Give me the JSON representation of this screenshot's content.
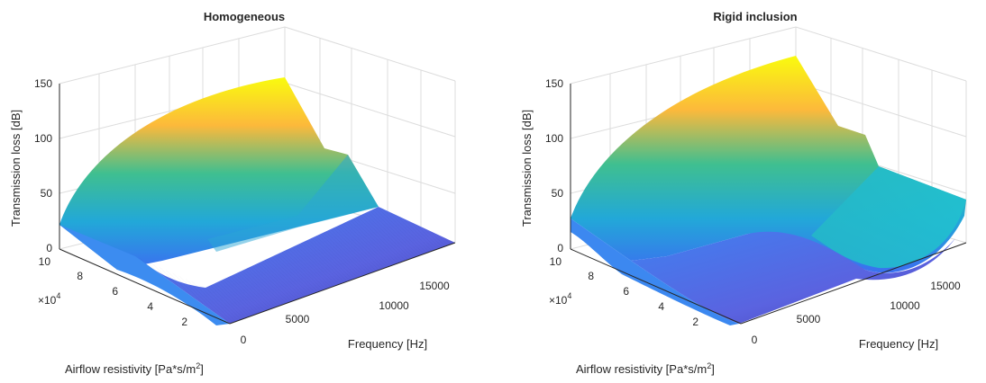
{
  "chart_data": [
    {
      "type": "surface",
      "title": "Homogeneous",
      "xlabel": "Frequency [Hz]",
      "ylabel": "Airflow resistivity [Pa*s/m",
      "ylabel_sup": "2",
      "ylabel_end": "]",
      "zlabel": "Transmission loss [dB]",
      "y_exponent": "×10",
      "y_exponent_power": "4",
      "x_ticks": [
        "0",
        "5000",
        "10000",
        "15000"
      ],
      "y_ticks": [
        "2",
        "4",
        "6",
        "8",
        "10"
      ],
      "z_ticks": [
        "0",
        "50",
        "100",
        "150"
      ],
      "xlim": [
        0,
        17000
      ],
      "ylim": [
        0,
        10
      ],
      "zlim": [
        0,
        150
      ],
      "grid": true,
      "colormap": "parula",
      "corner_values": {
        "z_at_f0_sigmaMax": 20,
        "z_at_fMax_sigmaMax": 145,
        "z_at_fMax_sigmaMin": 0
      }
    },
    {
      "type": "surface",
      "title": "Rigid inclusion",
      "xlabel": "Frequency [Hz]",
      "ylabel": "Airflow resistivity [Pa*s/m",
      "ylabel_sup": "2",
      "ylabel_end": "]",
      "zlabel": "Transmission loss [dB]",
      "y_exponent": "×10",
      "y_exponent_power": "4",
      "x_ticks": [
        "0",
        "5000",
        "10000",
        "15000"
      ],
      "y_ticks": [
        "2",
        "4",
        "6",
        "8",
        "10"
      ],
      "z_ticks": [
        "0",
        "50",
        "100",
        "150"
      ],
      "xlim": [
        0,
        17000
      ],
      "ylim": [
        0,
        10
      ],
      "zlim": [
        0,
        150
      ],
      "grid": true,
      "colormap": "parula",
      "corner_values": {
        "z_at_f0_sigmaMax": 20,
        "z_at_fMax_sigmaMax": 150,
        "z_at_fMax_sigmaMin": 40
      }
    }
  ]
}
